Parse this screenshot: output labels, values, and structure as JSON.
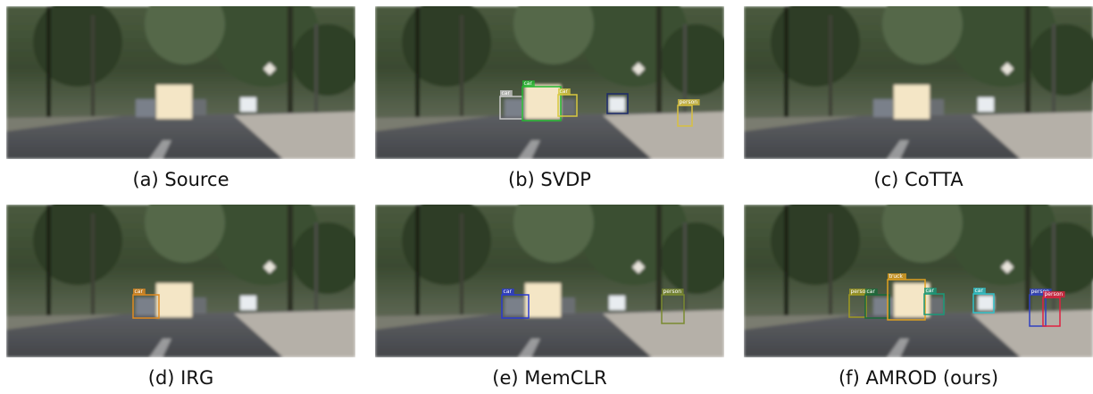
{
  "panels": [
    {
      "caption": "(a) Source",
      "detections": []
    },
    {
      "caption": "(b) SVDP",
      "detections": [
        {
          "label": "car",
          "color": "#c8c8c8"
        },
        {
          "label": "car",
          "color": "#22b830"
        },
        {
          "label": "car",
          "color": "#d8c840"
        },
        {
          "color": "#1c2a6a"
        },
        {
          "label": "person",
          "color": "#d8c040"
        }
      ]
    },
    {
      "caption": "(c) CoTTA",
      "detections": []
    },
    {
      "caption": "(d) IRG",
      "detections": [
        {
          "label": "car",
          "color": "#e08a20"
        }
      ]
    },
    {
      "caption": "(e) MemCLR",
      "detections": [
        {
          "label": "car",
          "color": "#2a3ad0"
        },
        {
          "label": "person",
          "color": "#7a8a30"
        }
      ]
    },
    {
      "caption": "(f) AMROD (ours)",
      "detections": [
        {
          "label": "person",
          "color": "#a09a20"
        },
        {
          "label": "car",
          "color": "#1a6a3a"
        },
        {
          "label": "truck",
          "color": "#e0a020"
        },
        {
          "label": "car",
          "color": "#1a9a7a"
        },
        {
          "label": "car",
          "color": "#30c0c8"
        },
        {
          "label": "person",
          "color": "#3040c0"
        },
        {
          "label": "person",
          "color": "#e02040"
        }
      ]
    }
  ]
}
